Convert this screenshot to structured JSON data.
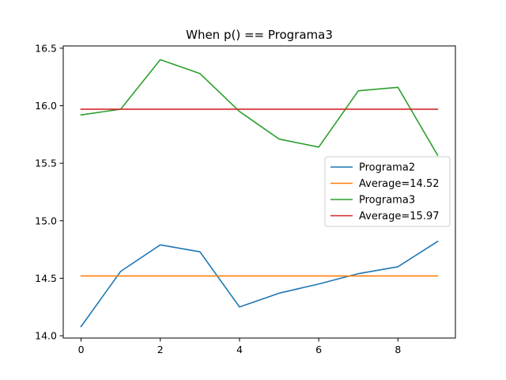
{
  "chart_data": {
    "type": "line",
    "title": "When p() == Programa3",
    "xlabel": "",
    "ylabel": "",
    "xlim": [
      -0.45,
      9.45
    ],
    "ylim": [
      13.98,
      16.52
    ],
    "xticks": [
      0,
      2,
      4,
      6,
      8
    ],
    "xtick_labels": [
      "0",
      "2",
      "4",
      "6",
      "8"
    ],
    "yticks": [
      14.0,
      14.5,
      15.0,
      15.5,
      16.0,
      16.5
    ],
    "ytick_labels": [
      "14.0",
      "14.5",
      "15.0",
      "15.5",
      "16.0",
      "16.5"
    ],
    "grid": false,
    "legend_position": "center-right",
    "x": [
      0,
      1,
      2,
      3,
      4,
      5,
      6,
      7,
      8,
      9
    ],
    "series": [
      {
        "name": "Programa2",
        "color": "#1f77b4",
        "values": [
          14.08,
          14.56,
          14.79,
          14.73,
          14.25,
          14.37,
          14.45,
          14.54,
          14.6,
          14.82
        ]
      },
      {
        "name": "Average=14.52",
        "color": "#ff7f0e",
        "values": [
          14.52,
          14.52,
          14.52,
          14.52,
          14.52,
          14.52,
          14.52,
          14.52,
          14.52,
          14.52
        ]
      },
      {
        "name": "Programa3",
        "color": "#2ca02c",
        "values": [
          15.92,
          15.97,
          16.4,
          16.28,
          15.95,
          15.71,
          15.64,
          16.13,
          16.16,
          15.57
        ]
      },
      {
        "name": "Average=15.97",
        "color": "#d62728",
        "values": [
          15.97,
          15.97,
          15.97,
          15.97,
          15.97,
          15.97,
          15.97,
          15.97,
          15.97,
          15.97
        ]
      }
    ]
  }
}
